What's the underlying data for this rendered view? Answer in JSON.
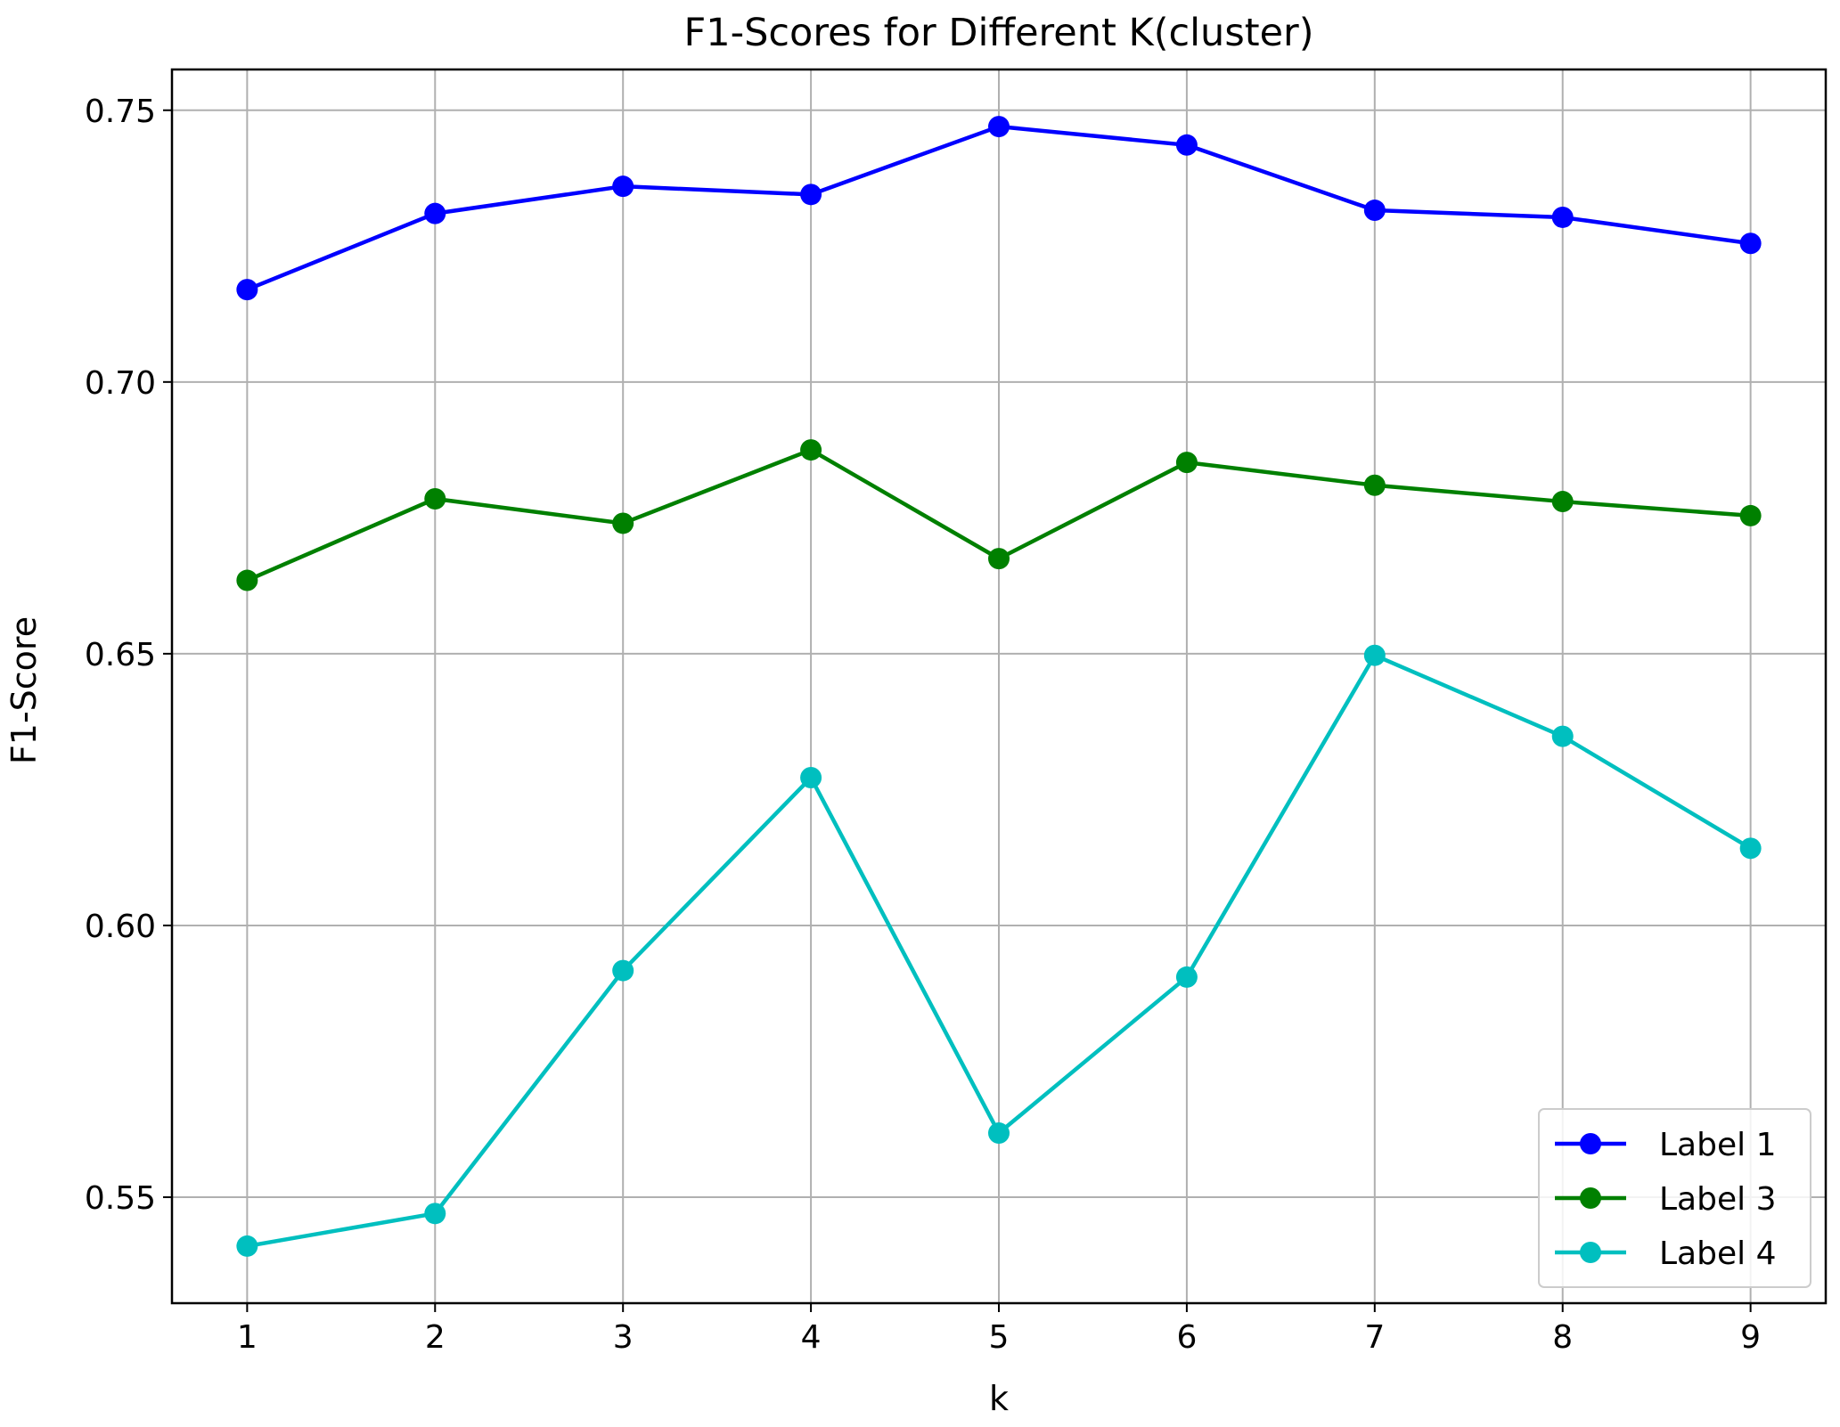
{
  "chart_data": {
    "type": "line",
    "title": "F1-Scores for Different K(cluster)",
    "xlabel": "k",
    "ylabel": "F1-Score",
    "x": [
      1,
      2,
      3,
      4,
      5,
      6,
      7,
      8,
      9
    ],
    "xticks": [
      "1",
      "2",
      "3",
      "4",
      "5",
      "6",
      "7",
      "8",
      "9"
    ],
    "xlim": [
      0.6,
      9.4
    ],
    "yticks": [
      "0.55",
      "0.60",
      "0.65",
      "0.70",
      "0.75"
    ],
    "ylim": [
      0.5305,
      0.7575
    ],
    "grid": true,
    "legend_position": "lower right",
    "series": [
      {
        "name": "Label 1",
        "color": "#0000ff",
        "values": [
          0.717,
          0.731,
          0.736,
          0.7345,
          0.747,
          0.7436,
          0.7316,
          0.7303,
          0.7255
        ]
      },
      {
        "name": "Label 3",
        "color": "#008000",
        "values": [
          0.6635,
          0.6785,
          0.674,
          0.6875,
          0.6675,
          0.6852,
          0.681,
          0.678,
          0.6754
        ]
      },
      {
        "name": "Label 4",
        "color": "#00bfbf",
        "values": [
          0.541,
          0.547,
          0.5917,
          0.6272,
          0.5618,
          0.5905,
          0.6497,
          0.6348,
          0.6142
        ]
      }
    ]
  }
}
